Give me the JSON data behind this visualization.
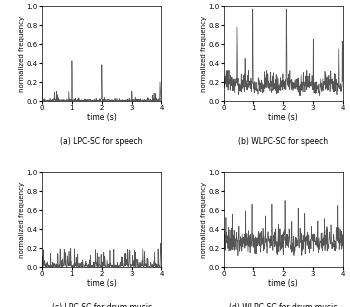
{
  "xlim": [
    0,
    4
  ],
  "ylim": [
    0,
    1
  ],
  "yticks": [
    0,
    0.2,
    0.4,
    0.6,
    0.8,
    1
  ],
  "xticks": [
    0,
    1,
    2,
    3,
    4
  ],
  "xlabel": "time (s)",
  "ylabel": "normalized frequency",
  "titles": [
    "(a) LPC-SC for speech",
    "(b) WLPC-SC for speech",
    "(c) LPC-SC for drum music",
    "(d) WLPC-SC for drum music"
  ],
  "line_color": "#555555",
  "background": "#ffffff",
  "seed": 42
}
